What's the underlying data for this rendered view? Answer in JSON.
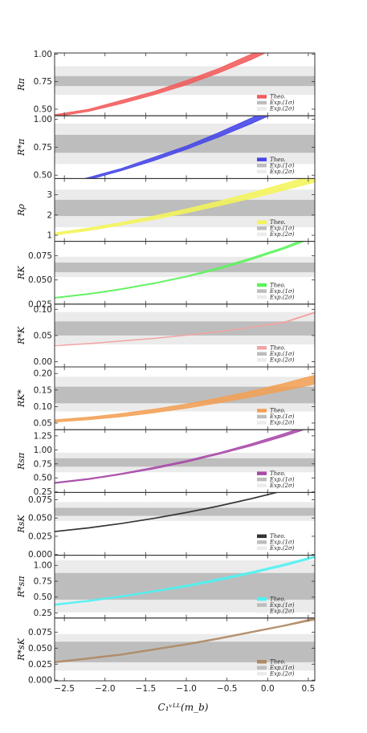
{
  "figure": {
    "xlabel": "C₁ᵛᴸᴸ(m_b)",
    "xlim": [
      -2.62,
      0.58
    ],
    "xticks": [
      -2.5,
      -2.0,
      -1.5,
      -1.0,
      -0.5,
      0.0,
      0.5
    ],
    "xtick_labels": [
      "−2.5",
      "−2.0",
      "−1.5",
      "−1.0",
      "−0.5",
      "0.0",
      "0.5"
    ],
    "legend_labels": [
      "Theo.",
      "Exp.(1σ)",
      "Exp.(2σ)"
    ],
    "colors": {
      "exp1": "#bdbdbd",
      "exp2": "#ebebeb",
      "frame": "#333333"
    }
  },
  "chart_data": [
    {
      "type": "area",
      "ylabel": "Rπ",
      "ylim": [
        0.44,
        1.01
      ],
      "yticks": [
        0.5,
        0.75,
        1.0
      ],
      "ytick_labels": [
        "0.50",
        "0.75",
        "1.00"
      ],
      "color": "#f25b5b",
      "exp_1sigma": [
        0.71,
        0.8
      ],
      "exp_2sigma": [
        0.63,
        0.89
      ],
      "x": [
        -2.62,
        -2.2,
        -1.8,
        -1.4,
        -1.0,
        -0.6,
        -0.2,
        0.2,
        0.58
      ],
      "lower": [
        0.43,
        0.48,
        0.55,
        0.63,
        0.72,
        0.83,
        0.95,
        1.09,
        1.24
      ],
      "upper": [
        0.45,
        0.5,
        0.58,
        0.66,
        0.76,
        0.87,
        1.0,
        1.14,
        1.3
      ]
    },
    {
      "type": "area",
      "ylabel": "R*π",
      "ylim": [
        0.47,
        1.03
      ],
      "yticks": [
        0.5,
        0.75,
        1.0
      ],
      "ytick_labels": [
        "0.50",
        "0.75",
        "1.00"
      ],
      "color": "#4444e8",
      "exp_1sigma": [
        0.7,
        0.86
      ],
      "exp_2sigma": [
        0.6,
        0.96
      ],
      "x": [
        -2.62,
        -2.2,
        -1.8,
        -1.4,
        -1.0,
        -0.6,
        -0.2,
        0.2,
        0.58
      ],
      "lower": [
        0.39,
        0.46,
        0.54,
        0.63,
        0.73,
        0.84,
        0.96,
        1.09,
        1.22
      ],
      "upper": [
        0.4,
        0.48,
        0.56,
        0.66,
        0.76,
        0.88,
        1.01,
        1.15,
        1.29
      ]
    },
    {
      "type": "area",
      "ylabel": "Rρ",
      "ylim": [
        0.7,
        3.8
      ],
      "yticks": [
        1,
        2,
        3
      ],
      "ytick_labels": [
        "1",
        "2",
        "3"
      ],
      "color": "#f4f45a",
      "exp_1sigma": [
        1.95,
        2.75
      ],
      "exp_2sigma": [
        1.4,
        3.25
      ],
      "x": [
        -2.62,
        -2.2,
        -1.8,
        -1.4,
        -1.0,
        -0.6,
        -0.2,
        0.2,
        0.58
      ],
      "lower": [
        1.0,
        1.23,
        1.5,
        1.78,
        2.1,
        2.45,
        2.82,
        3.22,
        3.62
      ],
      "upper": [
        1.12,
        1.36,
        1.63,
        1.95,
        2.3,
        2.68,
        3.1,
        3.55,
        3.98
      ]
    },
    {
      "type": "area",
      "ylabel": "RK",
      "ylim": [
        0.025,
        0.09
      ],
      "yticks": [
        0.025,
        0.05,
        0.075
      ],
      "ytick_labels": [
        "0.025",
        "0.050",
        "0.075"
      ],
      "color": "#5ef25e",
      "exp_1sigma": [
        0.058,
        0.068
      ],
      "exp_2sigma": [
        0.053,
        0.074
      ],
      "x": [
        -2.62,
        -2.2,
        -1.8,
        -1.4,
        -1.0,
        -0.6,
        -0.2,
        0.2,
        0.58
      ],
      "lower": [
        0.031,
        0.035,
        0.04,
        0.046,
        0.053,
        0.061,
        0.071,
        0.082,
        0.094
      ],
      "upper": [
        0.032,
        0.036,
        0.041,
        0.047,
        0.054,
        0.063,
        0.073,
        0.084,
        0.097
      ]
    },
    {
      "type": "area",
      "ylabel": "R*K",
      "ylim": [
        -0.01,
        0.11
      ],
      "yticks": [
        0.0,
        0.05,
        0.1
      ],
      "ytick_labels": [
        "0.00",
        "0.05",
        "0.10"
      ],
      "color": "#f4a3a3",
      "exp_1sigma": [
        0.05,
        0.077
      ],
      "exp_2sigma": [
        0.033,
        0.095
      ],
      "x": [
        -2.62,
        -2.2,
        -1.8,
        -1.4,
        -1.0,
        -0.6,
        -0.2,
        0.2,
        0.58
      ],
      "lower": [
        0.03,
        0.034,
        0.039,
        0.044,
        0.05,
        0.057,
        0.065,
        0.074,
        0.093
      ],
      "upper": [
        0.031,
        0.035,
        0.04,
        0.045,
        0.051,
        0.058,
        0.066,
        0.076,
        0.095
      ]
    },
    {
      "type": "area",
      "ylabel": "RK*",
      "ylim": [
        0.03,
        0.22
      ],
      "yticks": [
        0.05,
        0.1,
        0.15,
        0.2
      ],
      "ytick_labels": [
        "0.05",
        "0.10",
        "0.15",
        "0.20"
      ],
      "color": "#f2a055",
      "exp_1sigma": [
        0.11,
        0.16
      ],
      "exp_2sigma": [
        0.085,
        0.19
      ],
      "x": [
        -2.62,
        -2.2,
        -1.8,
        -1.4,
        -1.0,
        -0.6,
        -0.2,
        0.2,
        0.58
      ],
      "lower": [
        0.053,
        0.06,
        0.069,
        0.081,
        0.095,
        0.111,
        0.129,
        0.148,
        0.168
      ],
      "upper": [
        0.06,
        0.068,
        0.079,
        0.092,
        0.108,
        0.126,
        0.147,
        0.17,
        0.195
      ]
    },
    {
      "type": "area",
      "ylabel": "Rsπ",
      "ylim": [
        0.24,
        1.36
      ],
      "yticks": [
        0.25,
        0.5,
        0.75,
        1.0,
        1.25
      ],
      "ytick_labels": [
        "0.25",
        "0.50",
        "0.75",
        "1.00",
        "1.25"
      ],
      "color": "#a84aa8",
      "exp_1sigma": [
        0.7,
        0.85
      ],
      "exp_2sigma": [
        0.6,
        0.95
      ],
      "x": [
        -2.62,
        -2.2,
        -1.8,
        -1.4,
        -1.0,
        -0.6,
        -0.2,
        0.2,
        0.58
      ],
      "lower": [
        0.4,
        0.47,
        0.56,
        0.66,
        0.78,
        0.92,
        1.07,
        1.24,
        1.42
      ],
      "upper": [
        0.42,
        0.49,
        0.58,
        0.69,
        0.81,
        0.95,
        1.11,
        1.29,
        1.48
      ]
    },
    {
      "type": "area",
      "ylabel": "RsK",
      "ylim": [
        -0.001,
        0.085
      ],
      "yticks": [
        0.0,
        0.025,
        0.05,
        0.075
      ],
      "ytick_labels": [
        "0.000",
        "0.025",
        "0.050",
        "0.075"
      ],
      "color": "#333333",
      "exp_1sigma": [
        0.053,
        0.064
      ],
      "exp_2sigma": [
        0.046,
        0.072
      ],
      "x": [
        -2.62,
        -2.2,
        -1.8,
        -1.4,
        -1.0,
        -0.6,
        -0.2,
        0.2,
        0.58
      ],
      "lower": [
        0.031,
        0.036,
        0.042,
        0.049,
        0.057,
        0.066,
        0.076,
        0.087,
        0.099
      ],
      "upper": [
        0.032,
        0.037,
        0.043,
        0.05,
        0.058,
        0.067,
        0.077,
        0.088,
        0.1
      ]
    },
    {
      "type": "area",
      "ylabel": "R*sπ",
      "ylim": [
        0.17,
        1.16
      ],
      "yticks": [
        0.25,
        0.5,
        0.75,
        1.0
      ],
      "ytick_labels": [
        "0.25",
        "0.50",
        "0.75",
        "1.00"
      ],
      "color": "#4ef2f2",
      "exp_1sigma": [
        0.46,
        0.88
      ],
      "exp_2sigma": [
        0.26,
        1.08
      ],
      "x": [
        -2.62,
        -2.2,
        -1.8,
        -1.4,
        -1.0,
        -0.6,
        -0.2,
        0.2,
        0.58
      ],
      "lower": [
        0.37,
        0.43,
        0.5,
        0.58,
        0.66,
        0.76,
        0.87,
        0.99,
        1.12
      ],
      "upper": [
        0.39,
        0.45,
        0.52,
        0.6,
        0.69,
        0.79,
        0.9,
        1.02,
        1.15
      ]
    },
    {
      "type": "area",
      "ylabel": "R*sK",
      "ylim": [
        -0.001,
        0.097
      ],
      "yticks": [
        0.0,
        0.025,
        0.05,
        0.075
      ],
      "ytick_labels": [
        "0.000",
        "0.025",
        "0.050",
        "0.075"
      ],
      "color": "#b08a66",
      "exp_1sigma": [
        0.028,
        0.06
      ],
      "exp_2sigma": [
        0.015,
        0.072
      ],
      "x": [
        -2.62,
        -2.2,
        -1.8,
        -1.4,
        -1.0,
        -0.6,
        -0.2,
        0.2,
        0.58
      ],
      "lower": [
        0.027,
        0.033,
        0.039,
        0.047,
        0.055,
        0.064,
        0.074,
        0.084,
        0.094
      ],
      "upper": [
        0.029,
        0.035,
        0.041,
        0.049,
        0.057,
        0.066,
        0.076,
        0.086,
        0.097
      ]
    }
  ]
}
